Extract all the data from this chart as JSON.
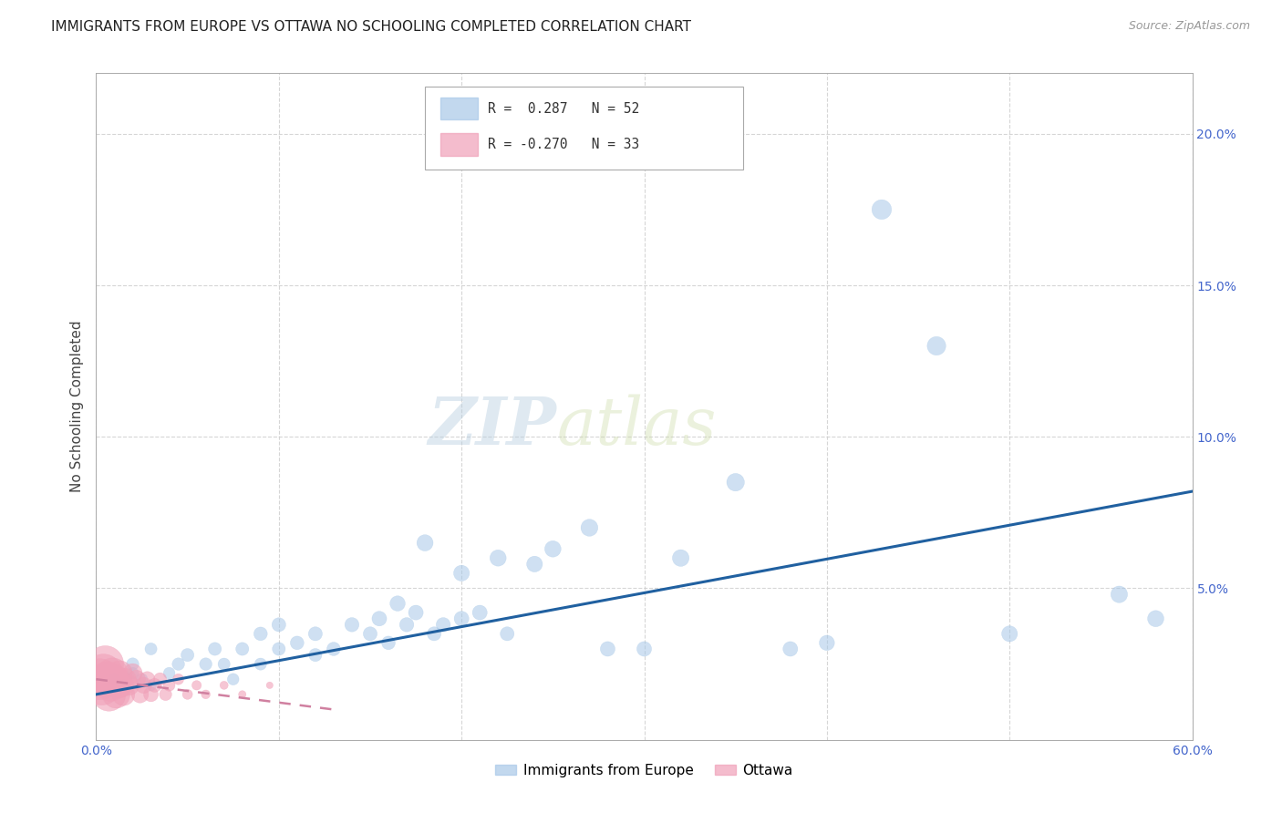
{
  "title": "IMMIGRANTS FROM EUROPE VS OTTAWA NO SCHOOLING COMPLETED CORRELATION CHART",
  "source": "Source: ZipAtlas.com",
  "ylabel": "No Schooling Completed",
  "xlim": [
    0.0,
    0.6
  ],
  "ylim": [
    0.0,
    0.22
  ],
  "xtick_positions": [
    0.0,
    0.1,
    0.2,
    0.3,
    0.4,
    0.5,
    0.6
  ],
  "xticklabels": [
    "0.0%",
    "",
    "",
    "",
    "",
    "",
    "60.0%"
  ],
  "ytick_positions": [
    0.0,
    0.05,
    0.1,
    0.15,
    0.2
  ],
  "yticklabels_right": [
    "",
    "5.0%",
    "10.0%",
    "15.0%",
    "20.0%"
  ],
  "legend_label1": "Immigrants from Europe",
  "legend_label2": "Ottawa",
  "blue_scatter_x": [
    0.01,
    0.015,
    0.02,
    0.02,
    0.025,
    0.03,
    0.03,
    0.04,
    0.045,
    0.05,
    0.06,
    0.065,
    0.07,
    0.075,
    0.08,
    0.09,
    0.09,
    0.1,
    0.1,
    0.11,
    0.12,
    0.12,
    0.13,
    0.14,
    0.15,
    0.155,
    0.16,
    0.165,
    0.17,
    0.175,
    0.18,
    0.185,
    0.19,
    0.2,
    0.2,
    0.21,
    0.22,
    0.225,
    0.24,
    0.25,
    0.27,
    0.28,
    0.3,
    0.32,
    0.35,
    0.38,
    0.4,
    0.43,
    0.46,
    0.5,
    0.56,
    0.58
  ],
  "blue_scatter_y": [
    0.02,
    0.018,
    0.022,
    0.025,
    0.02,
    0.018,
    0.03,
    0.022,
    0.025,
    0.028,
    0.025,
    0.03,
    0.025,
    0.02,
    0.03,
    0.025,
    0.035,
    0.03,
    0.038,
    0.032,
    0.028,
    0.035,
    0.03,
    0.038,
    0.035,
    0.04,
    0.032,
    0.045,
    0.038,
    0.042,
    0.065,
    0.035,
    0.038,
    0.04,
    0.055,
    0.042,
    0.06,
    0.035,
    0.058,
    0.063,
    0.07,
    0.03,
    0.03,
    0.06,
    0.085,
    0.03,
    0.032,
    0.175,
    0.13,
    0.035,
    0.048,
    0.04
  ],
  "blue_scatter_s": [
    30,
    25,
    28,
    32,
    28,
    25,
    30,
    28,
    32,
    35,
    32,
    35,
    30,
    28,
    35,
    30,
    38,
    35,
    40,
    38,
    35,
    40,
    38,
    42,
    40,
    45,
    38,
    48,
    42,
    45,
    55,
    40,
    42,
    45,
    52,
    45,
    55,
    40,
    52,
    55,
    60,
    45,
    45,
    58,
    65,
    45,
    48,
    80,
    72,
    52,
    58,
    55
  ],
  "pink_scatter_x": [
    0.002,
    0.003,
    0.004,
    0.005,
    0.006,
    0.007,
    0.008,
    0.009,
    0.01,
    0.011,
    0.012,
    0.013,
    0.014,
    0.015,
    0.016,
    0.018,
    0.02,
    0.022,
    0.024,
    0.026,
    0.028,
    0.03,
    0.032,
    0.035,
    0.038,
    0.04,
    0.045,
    0.05,
    0.055,
    0.06,
    0.07,
    0.08,
    0.095
  ],
  "pink_scatter_y": [
    0.02,
    0.018,
    0.022,
    0.025,
    0.02,
    0.015,
    0.018,
    0.022,
    0.02,
    0.015,
    0.018,
    0.022,
    0.018,
    0.015,
    0.02,
    0.018,
    0.022,
    0.02,
    0.015,
    0.018,
    0.02,
    0.015,
    0.018,
    0.02,
    0.015,
    0.018,
    0.02,
    0.015,
    0.018,
    0.015,
    0.018,
    0.015,
    0.018
  ],
  "pink_scatter_s": [
    300,
    280,
    260,
    240,
    220,
    200,
    180,
    165,
    150,
    135,
    120,
    110,
    100,
    90,
    82,
    72,
    65,
    58,
    52,
    46,
    42,
    38,
    34,
    30,
    27,
    24,
    21,
    18,
    16,
    14,
    12,
    10,
    8
  ],
  "blue_line_x": [
    0.0,
    0.6
  ],
  "blue_line_y": [
    0.015,
    0.082
  ],
  "pink_line_x": [
    0.0,
    0.13
  ],
  "pink_line_y": [
    0.02,
    0.01
  ],
  "watermark_zip": "ZIP",
  "watermark_atlas": "atlas",
  "bg_color": "#ffffff",
  "blue_color": "#a8c8e8",
  "pink_color": "#f0a0b8",
  "blue_line_color": "#2060a0",
  "pink_line_color": "#d080a0",
  "grid_color": "#cccccc",
  "title_color": "#222222",
  "axis_tick_color": "#4466cc",
  "ylabel_color": "#444444",
  "title_fontsize": 11,
  "source_fontsize": 9
}
